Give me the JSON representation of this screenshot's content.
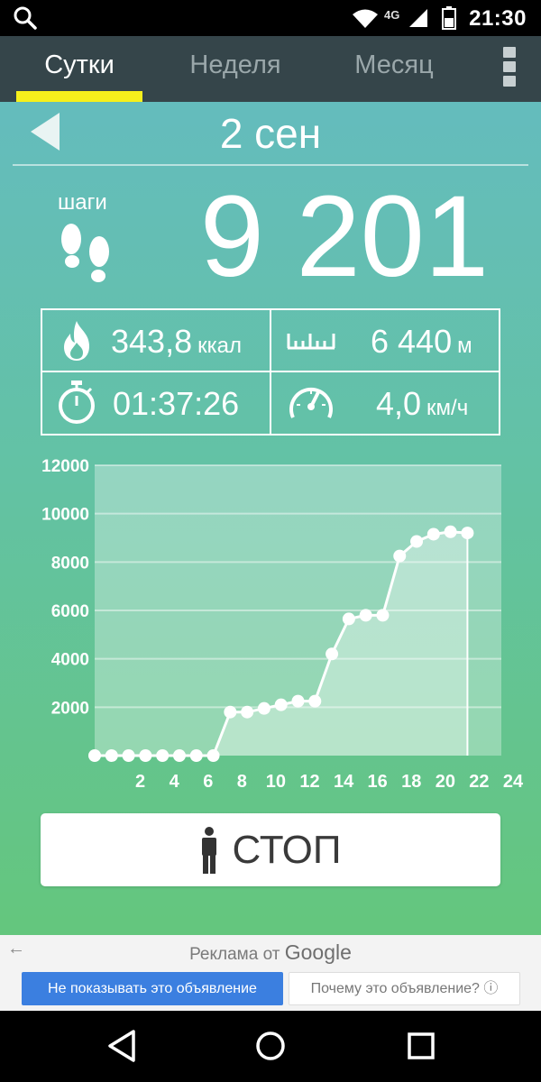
{
  "status_bar": {
    "time": "21:30",
    "network": "4G",
    "icons": [
      "search-icon",
      "wifi-icon",
      "signal-icon",
      "battery-icon"
    ]
  },
  "tabs": [
    {
      "label": "Сутки",
      "active": true
    },
    {
      "label": "Неделя",
      "active": false
    },
    {
      "label": "Месяц",
      "active": false
    }
  ],
  "header": {
    "date": "2 сен"
  },
  "steps": {
    "label": "шаги",
    "value": "9 201"
  },
  "stats": {
    "calories": {
      "value": "343,8",
      "unit": "ккал"
    },
    "distance": {
      "value": "6 440",
      "unit": "м"
    },
    "duration": {
      "value": "01:37:26"
    },
    "speed": {
      "value": "4,0",
      "unit": "км/ч"
    }
  },
  "chart_data": {
    "type": "area",
    "x": [
      0,
      1,
      2,
      3,
      4,
      5,
      6,
      7,
      8,
      9,
      10,
      11,
      12,
      13,
      14,
      15,
      16,
      17,
      18,
      19,
      20,
      21,
      22
    ],
    "values": [
      0,
      0,
      0,
      0,
      0,
      0,
      0,
      0,
      1800,
      1800,
      1950,
      2100,
      2250,
      2250,
      4200,
      5650,
      5800,
      5800,
      8250,
      8850,
      9150,
      9250,
      9201
    ],
    "x_ticks": [
      2,
      4,
      6,
      8,
      10,
      12,
      14,
      16,
      18,
      20,
      22,
      24
    ],
    "y_ticks": [
      2000,
      4000,
      6000,
      8000,
      10000,
      12000
    ],
    "xlim": [
      0,
      24
    ],
    "ylim": [
      0,
      12000
    ],
    "grid": true
  },
  "stop_button": {
    "label": "СТОП"
  },
  "ad": {
    "title_prefix": "Реклама от",
    "title_brand": "Google",
    "hide_label": "Не показывать это объявление",
    "why_label": "Почему это объявление? ⓘ"
  },
  "colors": {
    "accent": "#f6f01c",
    "tabbar": "#35454a",
    "ad_button": "#3b7fe0"
  }
}
